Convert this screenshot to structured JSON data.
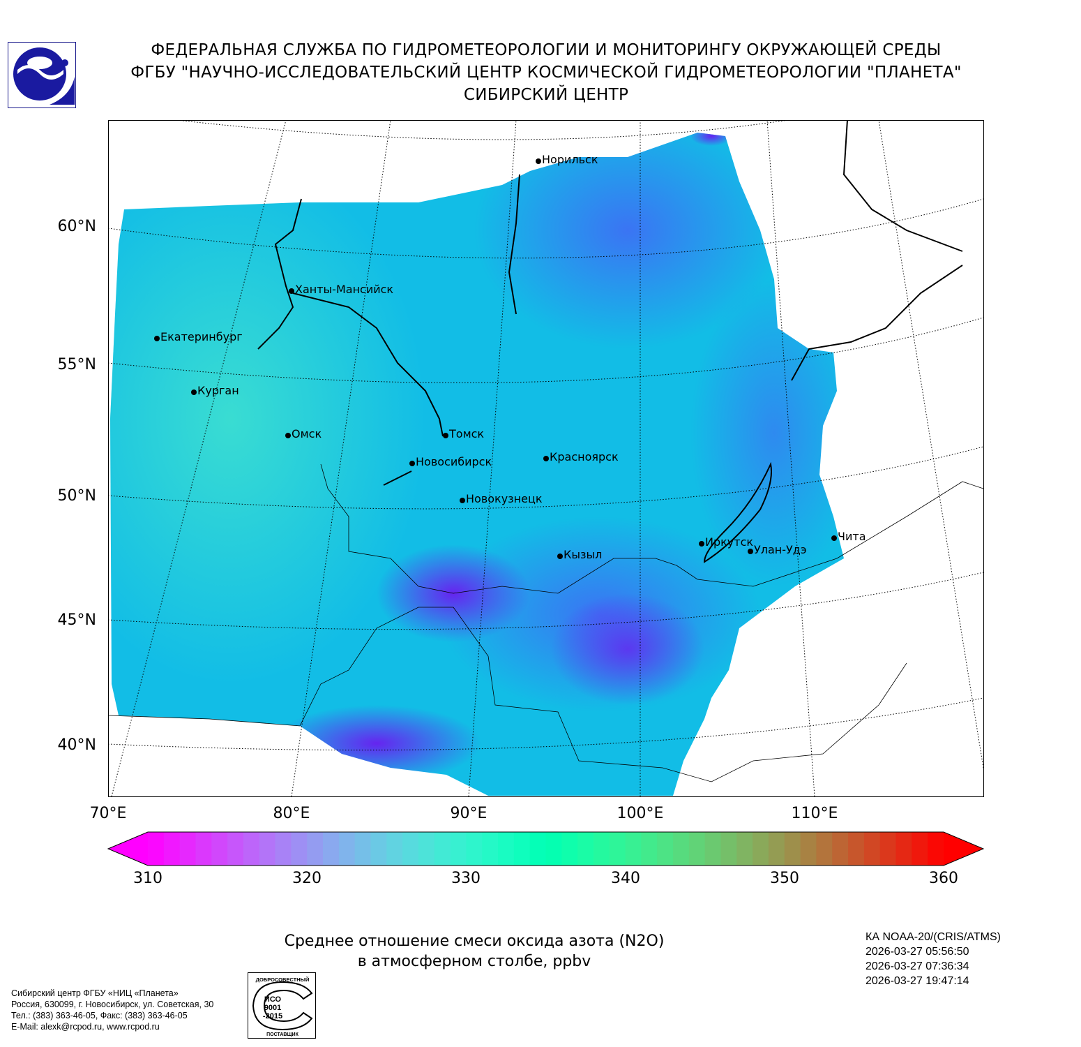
{
  "header": {
    "line1": "ФЕДЕРАЛЬНАЯ СЛУЖБА ПО ГИДРОМЕТЕОРОЛОГИИ И МОНИТОРИНГУ ОКРУЖАЮЩЕЙ СРЕДЫ",
    "line2": "ФГБУ \"НАУЧНО-ИССЛЕДОВАТЕЛЬСКИЙ ЦЕНТР КОСМИЧЕСКОЙ ГИДРОМЕТЕОРОЛОГИИ \"ПЛАНЕТА\"",
    "line3": "СИБИРСКИЙ ЦЕНТР",
    "logo_icon": "roshydromet-logo-icon"
  },
  "map": {
    "lat_labels": [
      "60°N",
      "55°N",
      "50°N",
      "45°N",
      "40°N"
    ],
    "lon_labels": [
      "70°E",
      "80°E",
      "90°E",
      "100°E",
      "110°E"
    ],
    "cities": [
      "Норильск",
      "Ханты-Мансийск",
      "Екатеринбург",
      "Курган",
      "Омск",
      "Томск",
      "Новосибирск",
      "Красноярск",
      "Новокузнецк",
      "Кызыл",
      "Иркутск",
      "Улан-Удэ",
      "Чита"
    ]
  },
  "colorbar": {
    "min": 310,
    "max": 360,
    "extend": "both",
    "ticks": [
      "310",
      "320",
      "330",
      "340",
      "350",
      "360"
    ],
    "colormap": "rainbow"
  },
  "title": {
    "line1": "Среднее отношение смеси оксида азота (N2O)",
    "line2": "в атмосферном столбе, ppbv"
  },
  "satellite": {
    "name": "КА NOAA-20/(CRIS/ATMS)",
    "times": [
      "2026-03-27 05:56:50",
      "2026-03-27 07:36:34",
      "2026-03-27 19:47:14"
    ]
  },
  "footer": {
    "org": "Сибирский центр ФГБУ «НИЦ «Планета»",
    "address": "Россия, 630099, г. Новосибирск, ул. Советская, 30",
    "phone": "Тел.: (383) 363-46-05, Факс: (383) 363-46-05",
    "email": "E-Mail: alexk@rcpod.ru, www.rcpod.ru",
    "badge": {
      "top": "ДОБРОСОВЕСТНЫЙ",
      "center": "ИСО 9001 -2015",
      "bottom": "ПОСТАВЩИК"
    }
  }
}
